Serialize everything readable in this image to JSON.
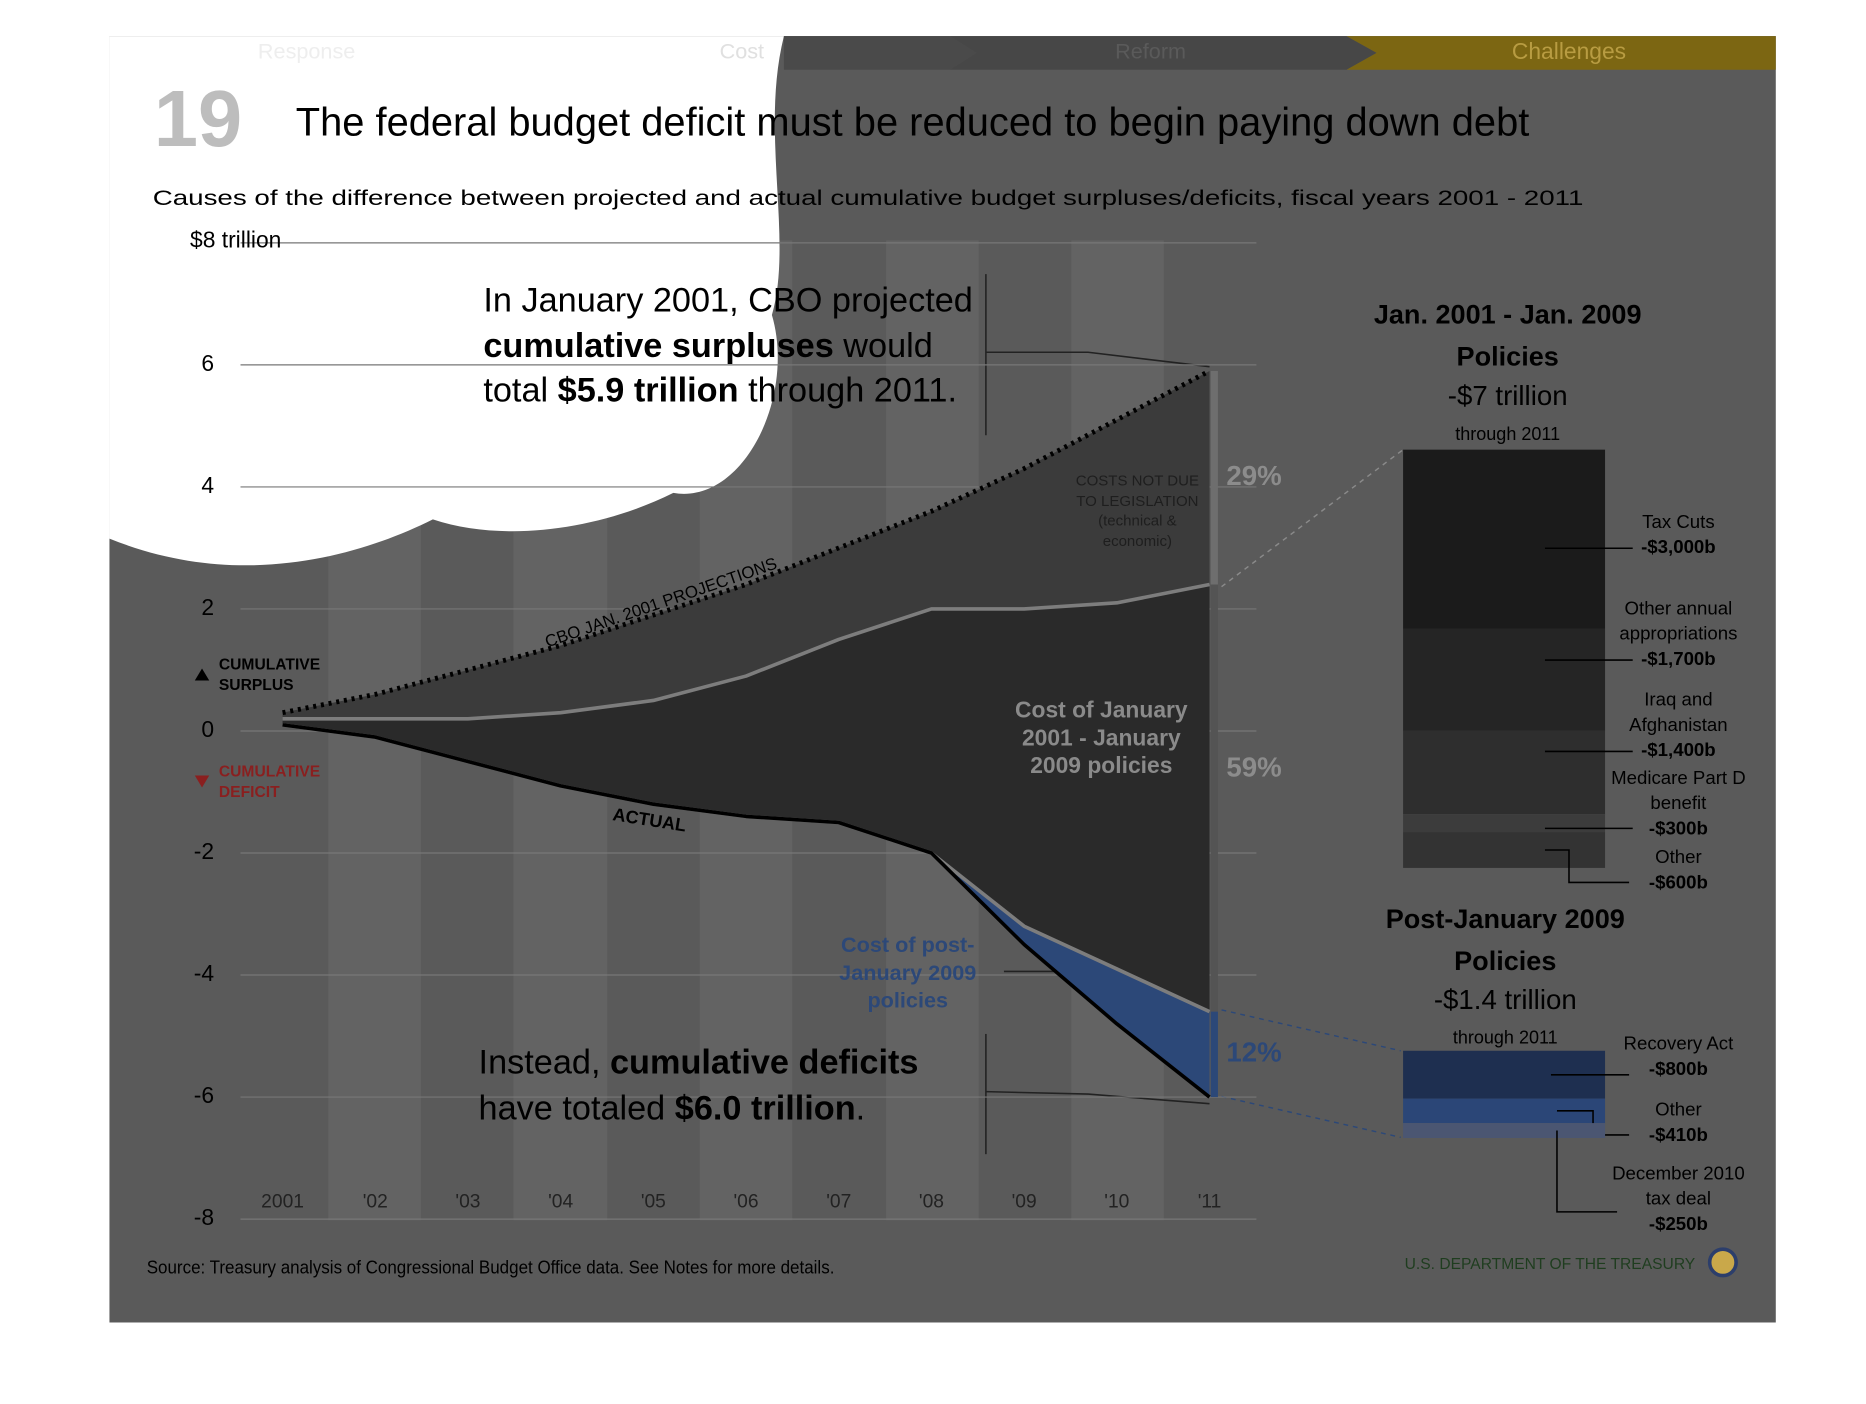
{
  "nav": [
    "Response",
    "Cost",
    "Reform",
    "Challenges"
  ],
  "page_number": "19",
  "title": "The federal budget deficit must be reduced to begin paying down debt",
  "subtitle": "Causes of the difference between projected and actual cumulative budget surpluses/deficits, fiscal years 2001 - 2011",
  "source": "Source: Treasury analysis of Congressional Budget Office data. See Notes for more details.",
  "agency": "U.S. DEPARTMENT OF THE TREASURY",
  "chart_data": [
    {
      "type": "line",
      "categories": [
        "2001",
        "'02",
        "'03",
        "'04",
        "'05",
        "'06",
        "'07",
        "'08",
        "'09",
        "'10",
        "'11"
      ],
      "ylim": [
        -8,
        8
      ],
      "yticks": [
        {
          "value": 8,
          "label": "$8 trillion"
        },
        6,
        4,
        2,
        0,
        -2,
        -4,
        -6,
        -8
      ],
      "grid": true,
      "series": [
        {
          "name": "CBO JAN. 2001 PROJECTIONS",
          "color": "#000000",
          "dashed": true,
          "values": [
            0.3,
            0.6,
            1.0,
            1.4,
            1.9,
            2.4,
            3.0,
            3.6,
            4.3,
            5.1,
            5.9
          ]
        },
        {
          "color": "#7d7d7d",
          "values": [
            0.2,
            0.2,
            0.2,
            0.3,
            0.5,
            0.9,
            1.5,
            2.0,
            2.0,
            2.1,
            2.4
          ]
        },
        {
          "color": "#7d7d7d",
          "values": [
            0.1,
            -0.1,
            -0.5,
            -0.9,
            -1.2,
            -1.4,
            -1.5,
            -2.0,
            -3.2,
            -3.9,
            -4.6
          ]
        },
        {
          "name": "ACTUAL",
          "color": "#000000",
          "values": [
            0.1,
            -0.1,
            -0.5,
            -0.9,
            -1.2,
            -1.4,
            -1.5,
            -2.0,
            -3.5,
            -4.8,
            -6.0
          ]
        }
      ],
      "area_colors": [
        "#3b3b3b",
        "#2a2a2a",
        "#2c4878"
      ],
      "area_labels": [
        "COSTS NOT DUE TO LEGISLATION (technical & economic)",
        "Cost of January 2001 - January 2009 policies",
        "Cost of post-January 2009 policies"
      ],
      "shares": [
        29,
        59,
        12
      ],
      "share_labels": [
        "29%",
        "59%",
        "12%"
      ],
      "surplus_label": "CUMULATIVE SURPLUS",
      "deficit_label": "CUMULATIVE DEFICIT",
      "callouts": [
        [
          {
            "text": "In January 2001, CBO projected "
          },
          {
            "text": "cumulative surpluses",
            "bold": true
          },
          {
            "text": " would total "
          },
          {
            "text": "$5.9 trillion",
            "bold": true
          },
          {
            "text": " through 2011."
          }
        ],
        [
          {
            "text": "Instead, "
          },
          {
            "text": "cumulative deficits",
            "bold": true
          },
          {
            "text": " have totaled "
          },
          {
            "text": "$6.0 trillion",
            "bold": true
          },
          {
            "text": "."
          }
        ]
      ]
    },
    {
      "type": "stacked_bar",
      "title": "Jan. 2001 - Jan. 2009 Policies",
      "total_label": "-$7 trillion",
      "note": "through 2011",
      "categories": [
        "Tax Cuts",
        "Other annual appropriations",
        "Iraq and Afghanistan",
        "Medicare Part D benefit",
        "Other"
      ],
      "values": [
        -3000,
        -1700,
        -1400,
        -300,
        -600
      ],
      "value_labels": [
        "-$3,000b",
        "-$1,700b",
        "-$1,400b",
        "-$300b",
        "-$600b"
      ],
      "colors": [
        "#1b1b1b",
        "#252525",
        "#2e2e2e",
        "#3c3c3c",
        "#333333"
      ]
    },
    {
      "type": "stacked_bar",
      "title": "Post-January 2009 Policies",
      "total_label": "-$1.4 trillion",
      "note": "through 2011",
      "categories": [
        "Recovery Act",
        "Other",
        "December 2010 tax deal"
      ],
      "values": [
        -800,
        -410,
        -250
      ],
      "value_labels": [
        "-$800b",
        "-$410b",
        "-$250b"
      ],
      "colors": [
        "#1e2f50",
        "#2b4677",
        "#4b5672"
      ]
    }
  ]
}
